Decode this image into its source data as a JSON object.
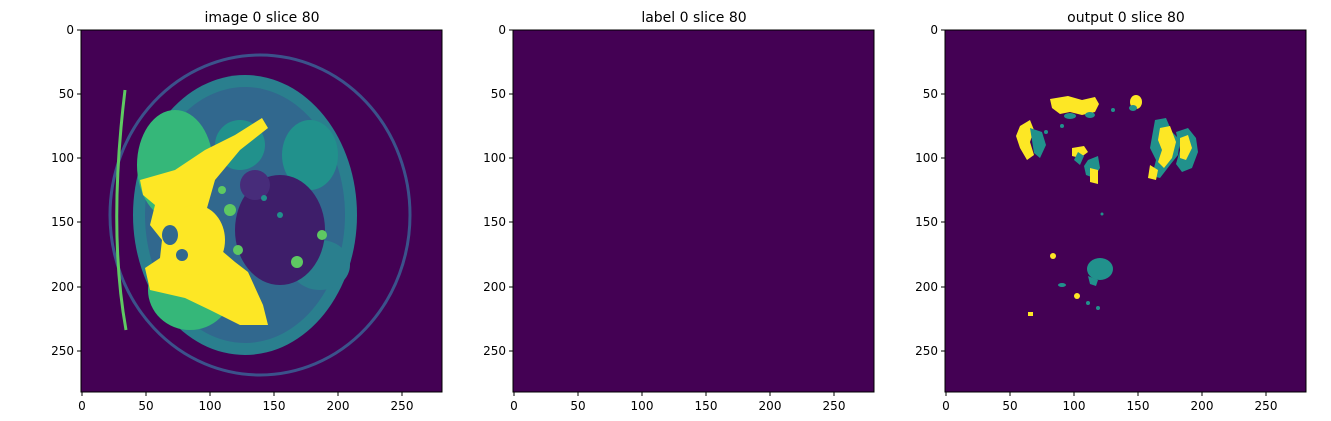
{
  "panels": [
    {
      "id": "image",
      "title": "image 0 slice 80"
    },
    {
      "id": "label",
      "title": "label 0 slice 80"
    },
    {
      "id": "output",
      "title": "output 0 slice 80"
    }
  ],
  "axis": {
    "xticks": [
      "0",
      "50",
      "100",
      "150",
      "200",
      "250"
    ],
    "yticks": [
      "0",
      "50",
      "100",
      "150",
      "200",
      "250"
    ]
  },
  "colormap": {
    "background": "#440154",
    "low": "#3b528b",
    "mid": "#21918c",
    "high": "#5ec962",
    "max": "#fde725"
  }
}
